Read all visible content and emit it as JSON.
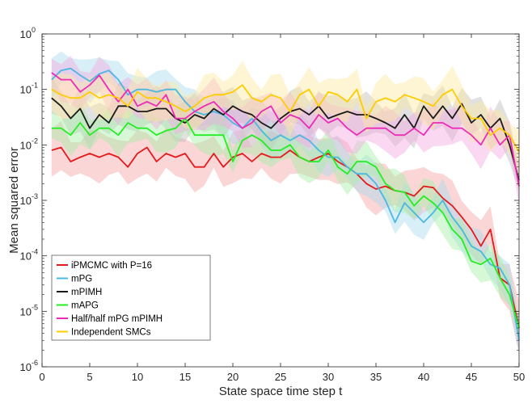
{
  "chart_data": {
    "type": "line",
    "title": "",
    "xlabel": "State space time step t",
    "ylabel": "Mean squared error",
    "xlim": [
      0,
      50
    ],
    "ylim": [
      1e-06,
      1
    ],
    "yscale": "log",
    "xticks": [
      "0",
      "5",
      "10",
      "15",
      "20",
      "25",
      "30",
      "35",
      "40",
      "45",
      "50"
    ],
    "yticks": [
      {
        "base": "10",
        "exp": "0"
      },
      {
        "base": "10",
        "exp": "-1"
      },
      {
        "base": "10",
        "exp": "-2"
      },
      {
        "base": "10",
        "exp": "-3"
      },
      {
        "base": "10",
        "exp": "-4"
      },
      {
        "base": "10",
        "exp": "-5"
      },
      {
        "base": "10",
        "exp": "-6"
      }
    ],
    "legend_position": "bottom-left",
    "x": [
      1,
      2,
      3,
      4,
      5,
      6,
      7,
      8,
      9,
      10,
      11,
      12,
      13,
      14,
      15,
      16,
      17,
      18,
      19,
      20,
      21,
      22,
      23,
      24,
      25,
      26,
      27,
      28,
      29,
      30,
      31,
      32,
      33,
      34,
      35,
      36,
      37,
      38,
      39,
      40,
      41,
      42,
      43,
      44,
      45,
      46,
      47,
      48,
      49,
      50
    ],
    "series": [
      {
        "name": "iPMCMC with P=16",
        "color": "#e41a1c",
        "band_color": "#f4a3a3",
        "values": [
          0.008,
          0.009,
          0.005,
          0.006,
          0.007,
          0.006,
          0.007,
          0.006,
          0.004,
          0.007,
          0.009,
          0.005,
          0.007,
          0.006,
          0.007,
          0.004,
          0.004,
          0.007,
          0.004,
          0.006,
          0.007,
          0.005,
          0.007,
          0.006,
          0.006,
          0.008,
          0.006,
          0.005,
          0.006,
          0.007,
          0.005,
          0.004,
          0.003,
          0.002,
          0.0016,
          0.0018,
          0.0015,
          0.0014,
          0.0012,
          0.0018,
          0.0017,
          0.0011,
          0.0008,
          0.0005,
          0.0003,
          0.00015,
          0.0003,
          4e-05,
          3e-05,
          5e-06
        ],
        "band_factor": 2.4
      },
      {
        "name": "mPG",
        "color": "#4ab8e0",
        "band_color": "#a9dcf0",
        "values": [
          0.15,
          0.22,
          0.24,
          0.18,
          0.14,
          0.19,
          0.22,
          0.15,
          0.08,
          0.1,
          0.1,
          0.09,
          0.1,
          0.1,
          0.06,
          0.04,
          0.035,
          0.04,
          0.035,
          0.025,
          0.02,
          0.03,
          0.018,
          0.012,
          0.015,
          0.012,
          0.015,
          0.012,
          0.008,
          0.006,
          0.006,
          0.004,
          0.003,
          0.003,
          0.002,
          0.001,
          0.0004,
          0.0009,
          0.0006,
          0.0004,
          0.0006,
          0.001,
          0.0005,
          0.0003,
          0.00015,
          0.00012,
          7e-05,
          6e-05,
          3e-05,
          3e-06
        ],
        "band_factor": 2.0
      },
      {
        "name": "mPIMH",
        "color": "#1a1a1a",
        "band_color": "#bdbdbd",
        "values": [
          0.07,
          0.05,
          0.03,
          0.045,
          0.02,
          0.035,
          0.025,
          0.05,
          0.05,
          0.04,
          0.04,
          0.045,
          0.045,
          0.03,
          0.025,
          0.035,
          0.03,
          0.045,
          0.035,
          0.05,
          0.04,
          0.035,
          0.025,
          0.02,
          0.03,
          0.04,
          0.045,
          0.035,
          0.05,
          0.03,
          0.035,
          0.04,
          0.035,
          0.035,
          0.03,
          0.025,
          0.02,
          0.035,
          0.02,
          0.05,
          0.03,
          0.05,
          0.03,
          0.055,
          0.025,
          0.035,
          0.02,
          0.03,
          0.01,
          0.0023
        ],
        "band_factor": 2.1
      },
      {
        "name": "mAPG",
        "color": "#22ee22",
        "band_color": "#a6f0a6",
        "values": [
          0.02,
          0.02,
          0.015,
          0.025,
          0.015,
          0.02,
          0.02,
          0.015,
          0.025,
          0.02,
          0.02,
          0.015,
          0.018,
          0.02,
          0.03,
          0.015,
          0.015,
          0.015,
          0.015,
          0.005,
          0.012,
          0.015,
          0.012,
          0.008,
          0.008,
          0.01,
          0.006,
          0.005,
          0.005,
          0.008,
          0.004,
          0.003,
          0.005,
          0.005,
          0.004,
          0.002,
          0.0015,
          0.0014,
          0.0008,
          0.0012,
          0.0009,
          0.0006,
          0.0003,
          0.0002,
          8e-05,
          7e-05,
          9e-05,
          4e-05,
          2e-05,
          5e-06
        ],
        "band_factor": 2.0
      },
      {
        "name": "Half/half mPG mPIMH",
        "color": "#ee2ab8",
        "band_color": "#f4a9e0",
        "values": [
          0.2,
          0.15,
          0.15,
          0.09,
          0.12,
          0.18,
          0.1,
          0.06,
          0.1,
          0.05,
          0.06,
          0.05,
          0.08,
          0.03,
          0.03,
          0.04,
          0.05,
          0.06,
          0.04,
          0.03,
          0.02,
          0.025,
          0.04,
          0.05,
          0.025,
          0.035,
          0.03,
          0.02,
          0.035,
          0.025,
          0.03,
          0.02,
          0.015,
          0.02,
          0.02,
          0.02,
          0.015,
          0.015,
          0.02,
          0.015,
          0.025,
          0.025,
          0.02,
          0.02,
          0.015,
          0.01,
          0.02,
          0.01,
          0.015,
          0.0018
        ],
        "band_factor": 2.2
      },
      {
        "name": "Independent SMCs",
        "color": "#ffcc00",
        "band_color": "#fde9a0",
        "values": [
          0.1,
          0.08,
          0.07,
          0.07,
          0.09,
          0.07,
          0.08,
          0.07,
          0.05,
          0.09,
          0.07,
          0.07,
          0.06,
          0.05,
          0.04,
          0.05,
          0.07,
          0.08,
          0.08,
          0.09,
          0.12,
          0.07,
          0.06,
          0.08,
          0.07,
          0.04,
          0.08,
          0.1,
          0.05,
          0.09,
          0.08,
          0.06,
          0.1,
          0.03,
          0.06,
          0.07,
          0.06,
          0.08,
          0.07,
          0.06,
          0.05,
          0.08,
          0.1,
          0.05,
          0.03,
          0.03,
          0.015,
          0.02,
          0.015,
          0.0075
        ],
        "band_factor": 2.2
      }
    ]
  }
}
